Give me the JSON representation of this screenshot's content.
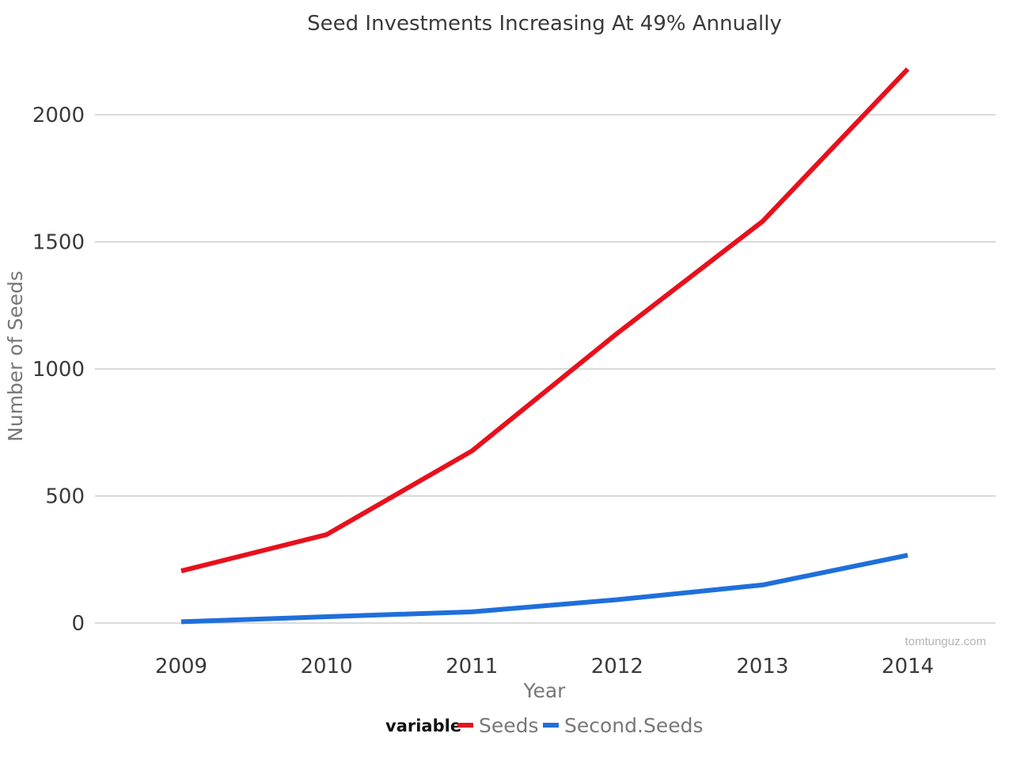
{
  "chart_data": {
    "type": "line",
    "title": "Seed Investments Increasing At 49% Annually",
    "xlabel": "Year",
    "ylabel": "Number of Seeds",
    "categories": [
      "2009",
      "2010",
      "2011",
      "2012",
      "2013",
      "2014"
    ],
    "y_ticks": [
      "0",
      "500",
      "1000",
      "1500",
      "2000"
    ],
    "ylim": [
      0,
      2000
    ],
    "grid": true,
    "legend_position": "bottom",
    "legend_title": "variable",
    "series": [
      {
        "name": "Seeds",
        "color": "#e8101c",
        "values": [
          205,
          348,
          677,
          1140,
          1580,
          2180
        ]
      },
      {
        "name": "Second.Seeds",
        "color": "#1f6fdb",
        "values": [
          5,
          25,
          44,
          92,
          150,
          267
        ]
      }
    ],
    "watermark": "tomtunguz.com"
  }
}
